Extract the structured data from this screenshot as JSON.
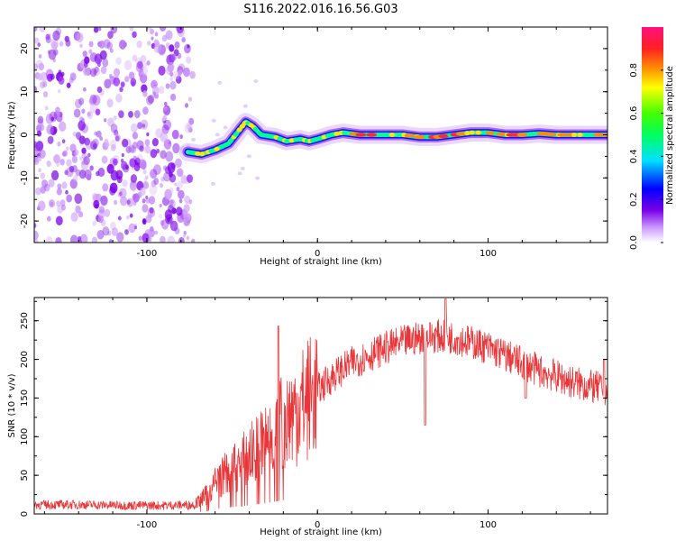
{
  "title": "S116.2022.016.16.56.G03",
  "chart_data": [
    {
      "type": "heatmap",
      "xlabel": "Height of straight line (km)",
      "ylabel": "Frequency (Hz)",
      "xlim": [
        -166,
        170
      ],
      "ylim": [
        -25,
        25
      ],
      "x_ticks": [
        -100,
        0,
        100
      ],
      "y_ticks": [
        -20,
        -10,
        0,
        10,
        20
      ],
      "colorbar": {
        "label": "Normalized spectral amplitude",
        "range": [
          0,
          1
        ],
        "ticks": [
          "0.0",
          "0.2",
          "0.4",
          "0.6",
          "0.8"
        ],
        "colormap": "white-purple-blue-cyan-green-yellow-orange-red-magenta"
      },
      "noise_region_x": [
        -166,
        -75
      ],
      "ridge": [
        {
          "x": -76,
          "y": -4
        },
        {
          "x": -68,
          "y": -4.5
        },
        {
          "x": -60,
          "y": -3.5
        },
        {
          "x": -52,
          "y": -2
        },
        {
          "x": -46,
          "y": 1
        },
        {
          "x": -42,
          "y": 3
        },
        {
          "x": -38,
          "y": 2
        },
        {
          "x": -33,
          "y": 0
        },
        {
          "x": -25,
          "y": -0.5
        },
        {
          "x": -18,
          "y": -1.5
        },
        {
          "x": -10,
          "y": -1
        },
        {
          "x": -5,
          "y": -1.5
        },
        {
          "x": 0,
          "y": -1
        },
        {
          "x": 8,
          "y": 0
        },
        {
          "x": 15,
          "y": 0.5
        },
        {
          "x": 25,
          "y": 0
        },
        {
          "x": 40,
          "y": 0
        },
        {
          "x": 50,
          "y": 0
        },
        {
          "x": 60,
          "y": -0.5
        },
        {
          "x": 70,
          "y": -0.5
        },
        {
          "x": 80,
          "y": 0
        },
        {
          "x": 90,
          "y": 0.5
        },
        {
          "x": 100,
          "y": 0.5
        },
        {
          "x": 110,
          "y": 0
        },
        {
          "x": 120,
          "y": 0
        },
        {
          "x": 130,
          "y": 0.3
        },
        {
          "x": 140,
          "y": 0
        },
        {
          "x": 150,
          "y": 0
        },
        {
          "x": 160,
          "y": 0
        },
        {
          "x": 170,
          "y": 0
        }
      ]
    },
    {
      "type": "line",
      "xlabel": "Height of straight line (km)",
      "ylabel": "SNR (10 * v/v)",
      "xlim": [
        -166,
        170
      ],
      "ylim": [
        0,
        280
      ],
      "x_ticks": [
        -100,
        0,
        100
      ],
      "y_ticks": [
        0,
        50,
        100,
        150,
        200,
        250
      ],
      "color": "#e8373a",
      "envelope": [
        {
          "x": -166,
          "y": 12
        },
        {
          "x": -140,
          "y": 12
        },
        {
          "x": -110,
          "y": 11
        },
        {
          "x": -90,
          "y": 11
        },
        {
          "x": -72,
          "y": 12
        },
        {
          "x": -65,
          "y": 25
        },
        {
          "x": -60,
          "y": 40
        },
        {
          "x": -55,
          "y": 50
        },
        {
          "x": -50,
          "y": 60
        },
        {
          "x": -45,
          "y": 65
        },
        {
          "x": -40,
          "y": 75
        },
        {
          "x": -35,
          "y": 85
        },
        {
          "x": -30,
          "y": 95
        },
        {
          "x": -25,
          "y": 105
        },
        {
          "x": -20,
          "y": 120
        },
        {
          "x": -15,
          "y": 130
        },
        {
          "x": -10,
          "y": 140
        },
        {
          "x": -5,
          "y": 150
        },
        {
          "x": 0,
          "y": 160
        },
        {
          "x": 10,
          "y": 180
        },
        {
          "x": 20,
          "y": 195
        },
        {
          "x": 30,
          "y": 205
        },
        {
          "x": 40,
          "y": 215
        },
        {
          "x": 50,
          "y": 222
        },
        {
          "x": 60,
          "y": 228
        },
        {
          "x": 70,
          "y": 230
        },
        {
          "x": 80,
          "y": 228
        },
        {
          "x": 90,
          "y": 222
        },
        {
          "x": 100,
          "y": 215
        },
        {
          "x": 110,
          "y": 205
        },
        {
          "x": 120,
          "y": 195
        },
        {
          "x": 130,
          "y": 185
        },
        {
          "x": 140,
          "y": 178
        },
        {
          "x": 150,
          "y": 170
        },
        {
          "x": 160,
          "y": 165
        },
        {
          "x": 170,
          "y": 160
        }
      ],
      "spikes": [
        {
          "x": -23,
          "y": 243
        },
        {
          "x": 63,
          "y": 115
        },
        {
          "x": 75,
          "y": 278
        },
        {
          "x": 122,
          "y": 150
        },
        {
          "x": 168,
          "y": 200
        }
      ]
    }
  ]
}
